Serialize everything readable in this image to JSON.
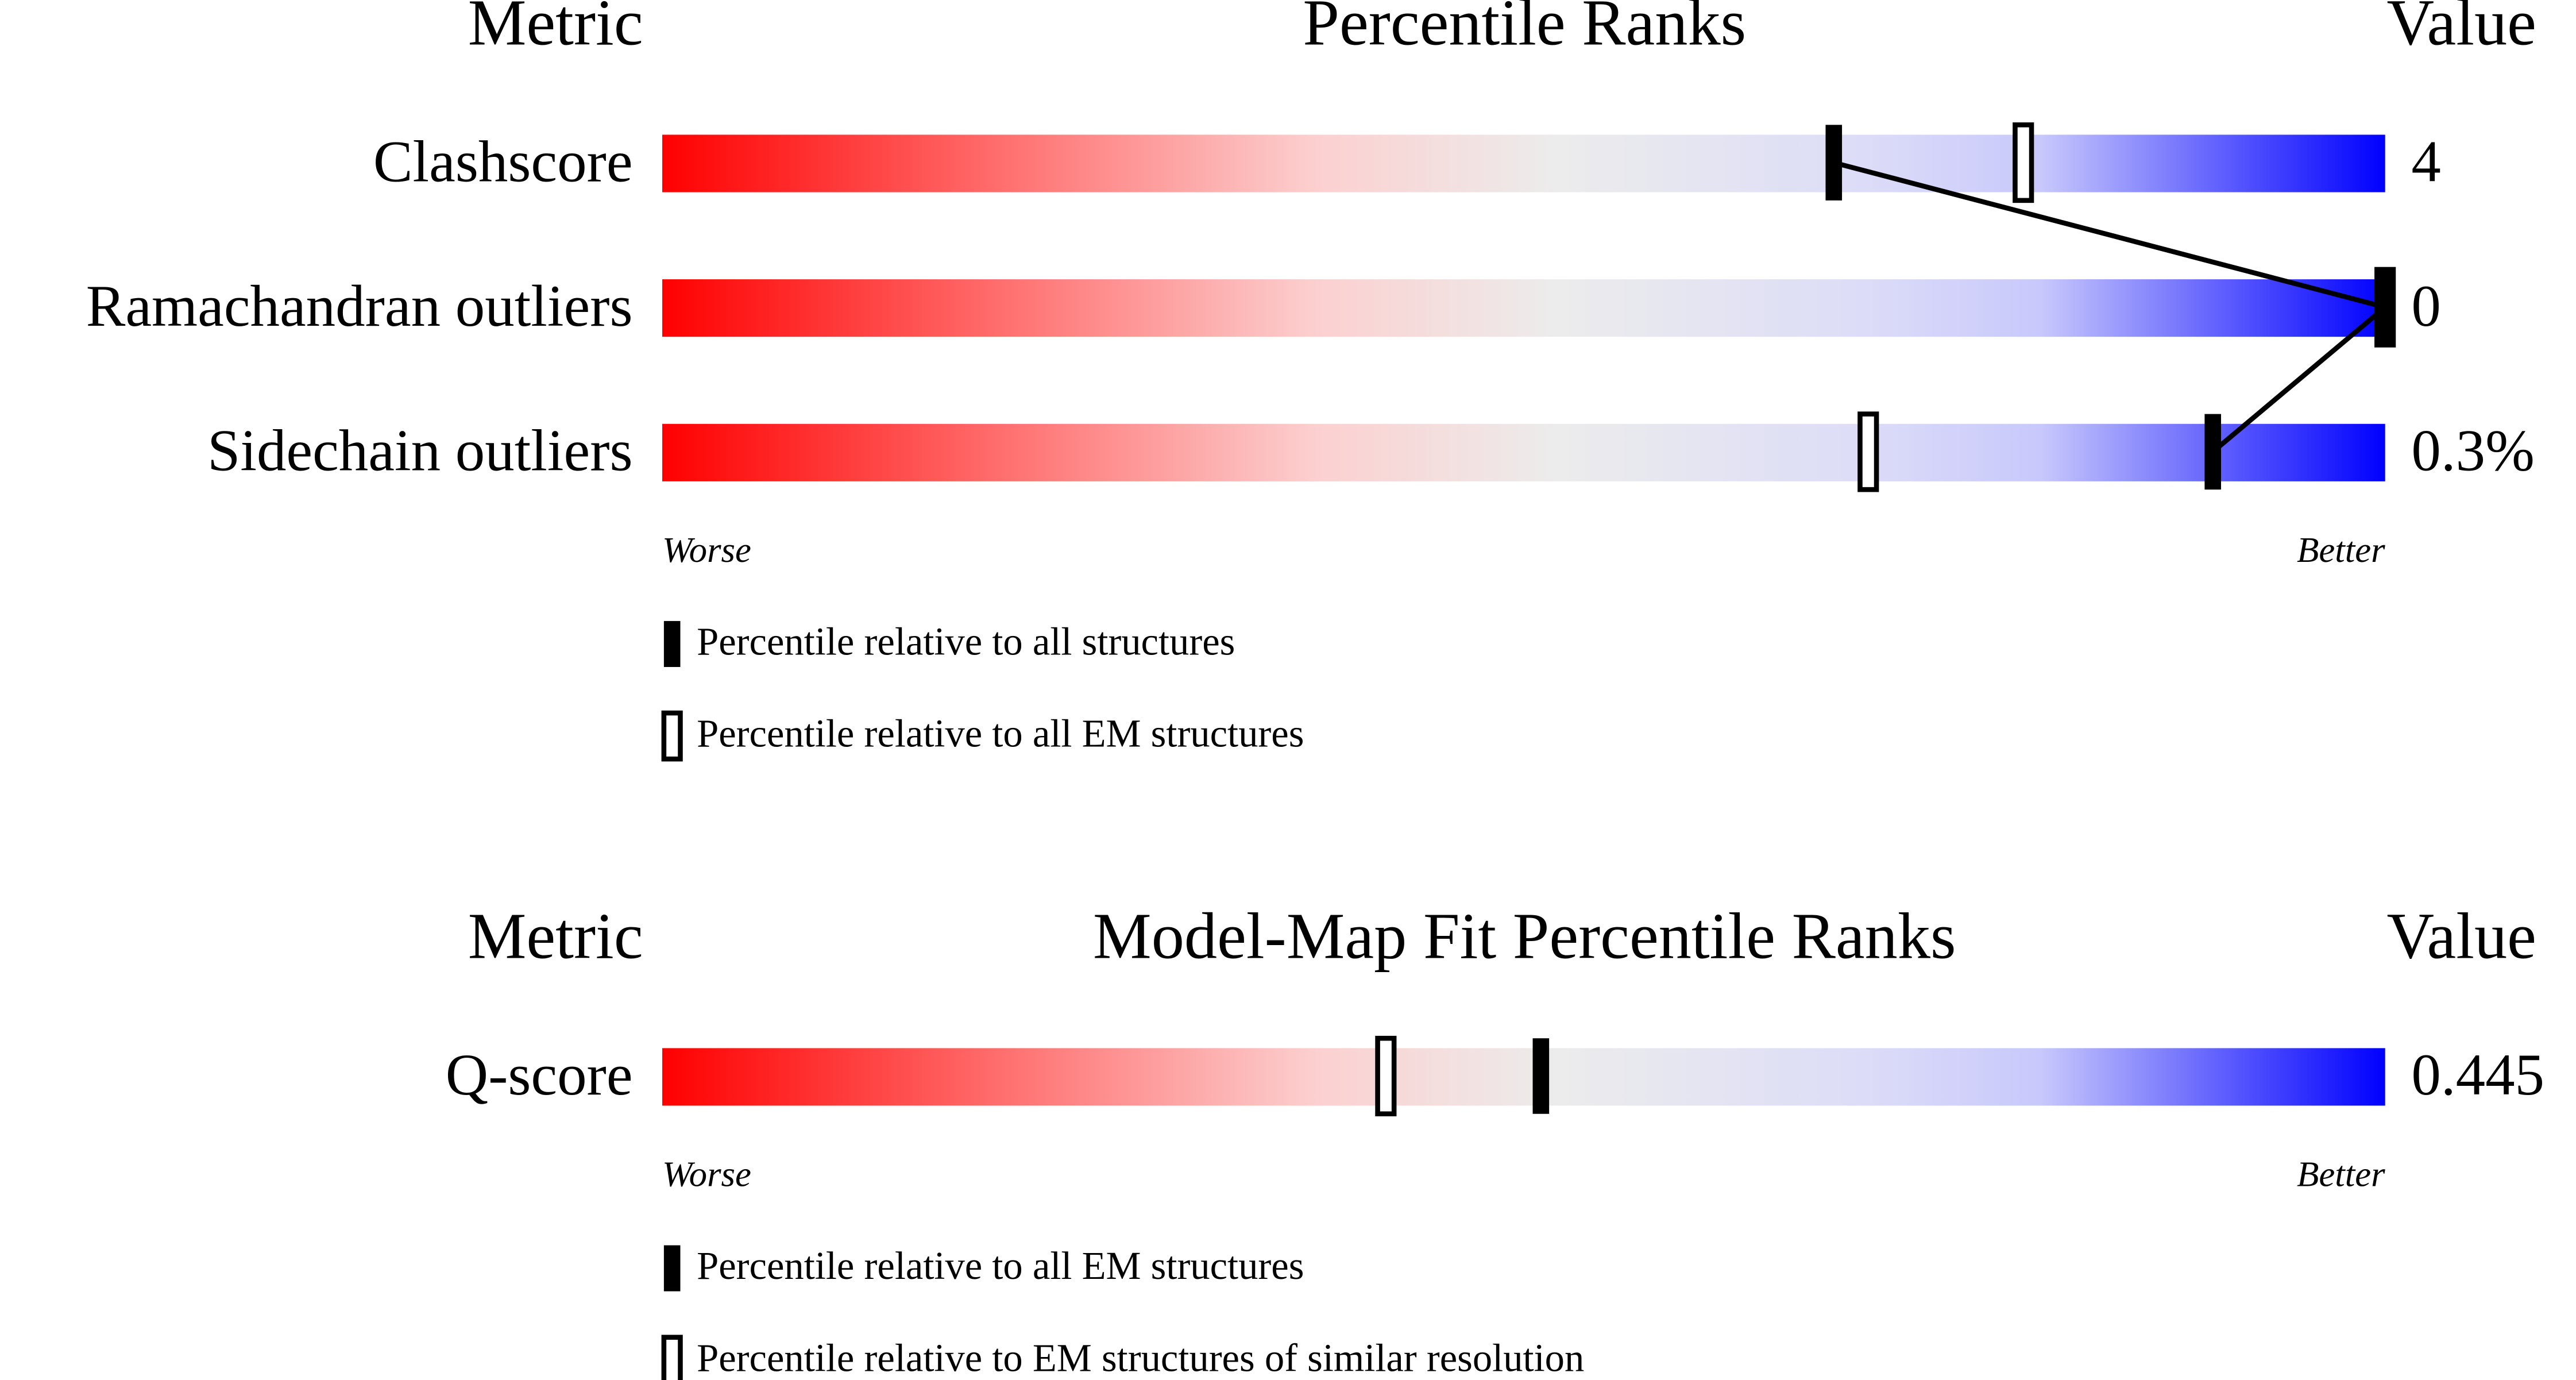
{
  "chart_data": [
    {
      "type": "percentile-slider",
      "title": "Percentile Ranks",
      "metric_header": "Metric",
      "value_header": "Value",
      "worse_label": "Worse",
      "better_label": "Better",
      "xlim": [
        0,
        100
      ],
      "connect_series": 0,
      "categories": [
        "Clashscore",
        "Ramachandran outliers",
        "Sidechain outliers"
      ],
      "values": [
        4,
        0,
        0.3
      ],
      "value_labels": [
        "4",
        "0",
        "0.3%"
      ],
      "series": [
        {
          "name": "Percentile relative to all structures",
          "marker": "filled",
          "color": "#000000",
          "values": [
            68,
            100,
            90
          ]
        },
        {
          "name": "Percentile relative to all EM structures",
          "marker": "open",
          "color": "#000000",
          "values": [
            79,
            100,
            70
          ]
        }
      ]
    },
    {
      "type": "percentile-slider",
      "title": "Model-Map Fit Percentile Ranks",
      "metric_header": "Metric",
      "value_header": "Value",
      "worse_label": "Worse",
      "better_label": "Better",
      "xlim": [
        0,
        100
      ],
      "categories": [
        "Q-score"
      ],
      "values": [
        0.445
      ],
      "value_labels": [
        "0.445"
      ],
      "series": [
        {
          "name": "Percentile relative to all EM structures",
          "marker": "filled",
          "color": "#000000",
          "values": [
            51
          ]
        },
        {
          "name": "Percentile relative to EM structures of similar resolution",
          "marker": "open",
          "color": "#000000",
          "values": [
            42
          ]
        }
      ]
    }
  ]
}
